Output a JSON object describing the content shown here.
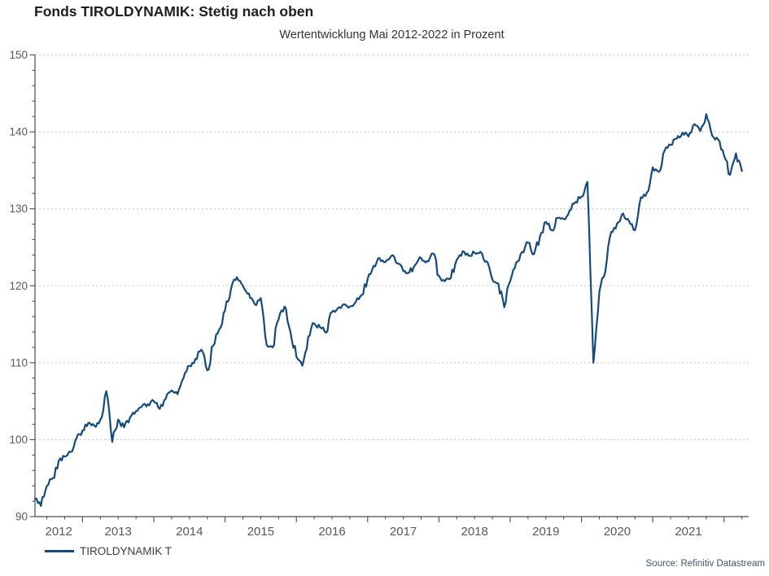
{
  "page": {
    "title": "Fonds TIROLDYNAMIK: Stetig nach oben",
    "subtitle": "Wertentwicklung Mai 2012-2022 in Prozent",
    "source": "Source: Refinitiv Datastream"
  },
  "legend": {
    "label": "TIROLDYNAMIK T"
  },
  "colors": {
    "line": "#144a7d",
    "grid": "#c8c8c8",
    "axis": "#4d4d4d",
    "tick_label": "#595959",
    "title_text": "#1f1f1f",
    "subtitle_text": "#333333",
    "source_text": "#44546a"
  },
  "chart_data": {
    "type": "line",
    "title": "Fonds TIROLDYNAMIK: Stetig nach oben",
    "subtitle": "Wertentwicklung Mai 2012-2022 in Prozent",
    "xlabel": "",
    "ylabel": "",
    "x_start": "2012-05",
    "x_end": "2022-04",
    "x_step": "1 month",
    "x_tick_labels": [
      "2012",
      "2013",
      "2014",
      "2015",
      "2016",
      "2017",
      "2018",
      "2019",
      "2020",
      "2021"
    ],
    "y_ticks": [
      90,
      100,
      110,
      120,
      130,
      140,
      150
    ],
    "y_minor_tick_step": 2,
    "x_minor_tick_step_months": 3,
    "ylim": [
      90,
      150
    ],
    "grid": "horizontal dotted lines at major y ticks",
    "legend_position": "bottom-left",
    "source": "Source: Refinitiv Datastream",
    "series": [
      {
        "name": "TIROLDYNAMIK T",
        "color": "#144a7d",
        "monthly_values": [
          92.3,
          91.4,
          94.0,
          95.0,
          97.3,
          97.8,
          98.4,
          100.2,
          101.2,
          102.2,
          101.8,
          102.6,
          106.3,
          99.7,
          102.6,
          101.6,
          102.9,
          103.7,
          104.3,
          104.6,
          105.0,
          104.0,
          105.3,
          106.4,
          105.9,
          108.0,
          109.6,
          110.5,
          111.7,
          109.0,
          112.2,
          114.3,
          116.8,
          119.6,
          121.1,
          120.0,
          119.0,
          117.6,
          118.4,
          112.3,
          112.0,
          115.6,
          117.3,
          114.0,
          110.8,
          109.6,
          113.4,
          115.1,
          114.6,
          113.9,
          116.6,
          117.1,
          117.6,
          117.3,
          117.9,
          118.8,
          120.9,
          122.6,
          123.6,
          123.1,
          123.9,
          122.9,
          121.9,
          121.7,
          122.7,
          123.6,
          123.2,
          124.2,
          121.3,
          120.6,
          121.0,
          123.4,
          124.5,
          123.9,
          124.3,
          124.4,
          123.2,
          120.8,
          120.3,
          117.2,
          120.6,
          123.0,
          124.4,
          125.6,
          124.1,
          126.4,
          128.3,
          127.2,
          128.8,
          128.7,
          129.8,
          130.9,
          131.6,
          133.5,
          110.0,
          119.2,
          121.8,
          127.0,
          128.1,
          129.4,
          128.4,
          127.2,
          131.5,
          132.1,
          135.4,
          134.8,
          137.6,
          138.3,
          139.1,
          139.9,
          139.4,
          141.0,
          140.1,
          142.3,
          139.5,
          139.0,
          136.9,
          134.4,
          137.2,
          134.9
        ]
      }
    ]
  }
}
